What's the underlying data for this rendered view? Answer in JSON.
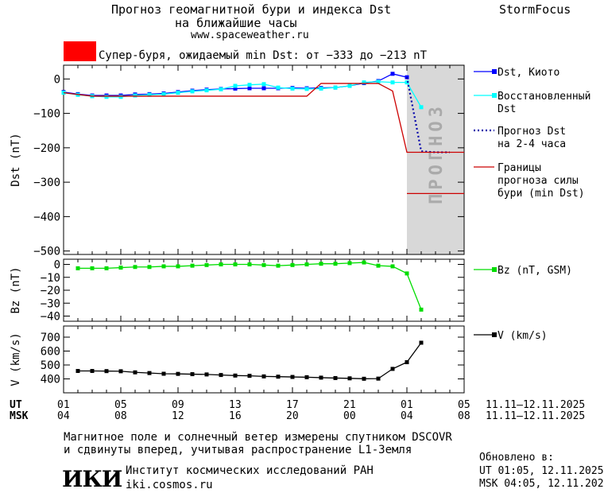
{
  "header": {
    "title_line1": "Прогноз геомагнитной бури и индекса Dst",
    "title_line2": "на ближайшие часы",
    "url": "www.spaceweather.ru",
    "brand": "StormFocus"
  },
  "alert": {
    "color": "#ff0000",
    "text": "Супер-буря, ожидаемый min Dst: от −333 до −213 nT"
  },
  "forecast_band": {
    "label": "ПРОГНОЗ",
    "color": "#d8d8d8"
  },
  "time_axis": {
    "ut_label": "UT",
    "msk_label": "MSK",
    "ut_ticks": [
      "01",
      "05",
      "09",
      "13",
      "17",
      "21",
      "01",
      "05"
    ],
    "msk_ticks": [
      "04",
      "08",
      "12",
      "16",
      "20",
      "00",
      "04",
      "08"
    ],
    "date_range_ut": "11.11–12.11.2025",
    "date_range_msk": "11.11–12.11.2025"
  },
  "chart_data": [
    {
      "type": "line",
      "ylabel": "Dst (nT)",
      "ylim": [
        -510,
        40
      ],
      "yticks": [
        0,
        -100,
        -200,
        -300,
        -400,
        -500
      ],
      "ytick_labels": [
        "0",
        "−100",
        "−200",
        "−300",
        "−400",
        "−500"
      ],
      "x_unit": "hours since 01 UT 11.11.2025",
      "xlim": [
        0,
        28
      ],
      "series": [
        {
          "name": "Dst, Киото",
          "color": "#0000ff",
          "marker": "square",
          "style": "solid",
          "x": [
            0,
            1,
            2,
            3,
            4,
            5,
            6,
            7,
            8,
            9,
            10,
            11,
            12,
            13,
            14,
            15,
            16,
            17,
            18,
            19,
            20,
            21,
            22,
            23,
            24
          ],
          "y": [
            -38,
            -44,
            -48,
            -48,
            -48,
            -45,
            -44,
            -42,
            -38,
            -34,
            -31,
            -29,
            -28,
            -27,
            -27,
            -27,
            -26,
            -27,
            -26,
            -25,
            -20,
            -12,
            -6,
            15,
            5
          ]
        },
        {
          "name": "Восстановленный Dst",
          "color": "#00ffff",
          "marker": "square",
          "style": "solid",
          "x": [
            0,
            1,
            2,
            3,
            4,
            5,
            6,
            7,
            8,
            9,
            10,
            11,
            12,
            13,
            14,
            15,
            16,
            17,
            18,
            19,
            20,
            21,
            22,
            23,
            24,
            25
          ],
          "y": [
            -40,
            -46,
            -50,
            -52,
            -52,
            -48,
            -46,
            -44,
            -40,
            -36,
            -33,
            -30,
            -20,
            -17,
            -15,
            -25,
            -28,
            -29,
            -28,
            -25,
            -20,
            -10,
            -8,
            -10,
            -10,
            -82
          ]
        },
        {
          "name": "Прогноз Dst на 2-4 часа",
          "color": "#0000aa",
          "marker": "none",
          "style": "dotted",
          "x": [
            24,
            25,
            26,
            27
          ],
          "y": [
            5,
            -210,
            -213,
            -213
          ]
        },
        {
          "name": "Границы прогноза силы бури (min Dst)",
          "color": "#cc0000",
          "marker": "none",
          "style": "solid",
          "x": [
            0,
            2,
            17,
            18,
            22,
            23,
            24,
            28
          ],
          "y": [
            -40,
            -50,
            -50,
            -13,
            -13,
            -35,
            -213,
            -213
          ]
        },
        {
          "name": "",
          "color": "#cc0000",
          "marker": "none",
          "style": "solid",
          "x": [
            24,
            28
          ],
          "y": [
            -333,
            -333
          ]
        }
      ],
      "legend": [
        {
          "text": "Dst, Киото",
          "color": "#0000ff",
          "kind": "line-square"
        },
        {
          "text": "Восстановленный",
          "text2": "Dst",
          "color": "#00ffff",
          "kind": "line-square"
        },
        {
          "text": "Прогноз Dst",
          "text2": "на 2-4 часа",
          "color": "#0000aa",
          "kind": "dotted"
        },
        {
          "text": "Границы",
          "text2": "прогноза силы",
          "text3": "бури (min Dst)",
          "color": "#cc0000",
          "kind": "line"
        }
      ]
    },
    {
      "type": "line",
      "ylabel": "Bz (nT)",
      "ylim": [
        -44,
        4
      ],
      "yticks": [
        0,
        -10,
        -20,
        -30,
        -40
      ],
      "ytick_labels": [
        "0",
        "−10",
        "−20",
        "−30",
        "−40"
      ],
      "xlim": [
        0,
        28
      ],
      "series": [
        {
          "name": "Bz (nT, GSM)",
          "color": "#00dd00",
          "marker": "square",
          "style": "solid",
          "x": [
            1,
            2,
            3,
            4,
            5,
            6,
            7,
            8,
            9,
            10,
            11,
            12,
            13,
            14,
            15,
            16,
            17,
            18,
            19,
            20,
            21,
            22,
            23,
            24,
            25
          ],
          "y": [
            -3,
            -3,
            -3,
            -2.5,
            -2,
            -2,
            -1.5,
            -1.5,
            -1,
            -0.5,
            0,
            0,
            0,
            -0.5,
            -1,
            -0.5,
            0,
            0.5,
            0.5,
            1,
            1.5,
            -1,
            -1.5,
            -7,
            -35
          ]
        }
      ],
      "legend": [
        {
          "text": "Bz (nT, GSM)",
          "color": "#00dd00",
          "kind": "line-square"
        }
      ]
    },
    {
      "type": "line",
      "ylabel": "V (km/s)",
      "ylim": [
        300,
        780
      ],
      "yticks": [
        700,
        600,
        500,
        400
      ],
      "ytick_labels": [
        "700",
        "600",
        "500",
        "400"
      ],
      "xlim": [
        0,
        28
      ],
      "series": [
        {
          "name": "V (km/s)",
          "color": "#000000",
          "marker": "square",
          "style": "solid",
          "x": [
            1,
            2,
            3,
            4,
            5,
            6,
            7,
            8,
            9,
            10,
            11,
            12,
            13,
            14,
            15,
            16,
            17,
            18,
            19,
            20,
            21,
            22,
            23,
            24,
            25
          ],
          "y": [
            457,
            457,
            456,
            455,
            447,
            442,
            437,
            436,
            434,
            432,
            428,
            424,
            422,
            418,
            416,
            414,
            412,
            409,
            406,
            404,
            401,
            402,
            472,
            520,
            660
          ]
        }
      ],
      "legend": [
        {
          "text": "V (km/s)",
          "color": "#000000",
          "kind": "line-square"
        }
      ]
    }
  ],
  "footer": {
    "note_line1": "Магнитное поле и солнечный ветер измерены спутником DSCOVR",
    "note_line2": "и сдвинуты вперед, учитывая распространение L1-Земля",
    "logo": "ИКИ",
    "institute": "Институт космических исследований РАН",
    "site": "iki.cosmos.ru",
    "updated_label": "Обновлено в:",
    "updated_ut": "UT  01:05, 12.11.2025",
    "updated_msk": "MSK 04:05, 12.11.2025"
  }
}
